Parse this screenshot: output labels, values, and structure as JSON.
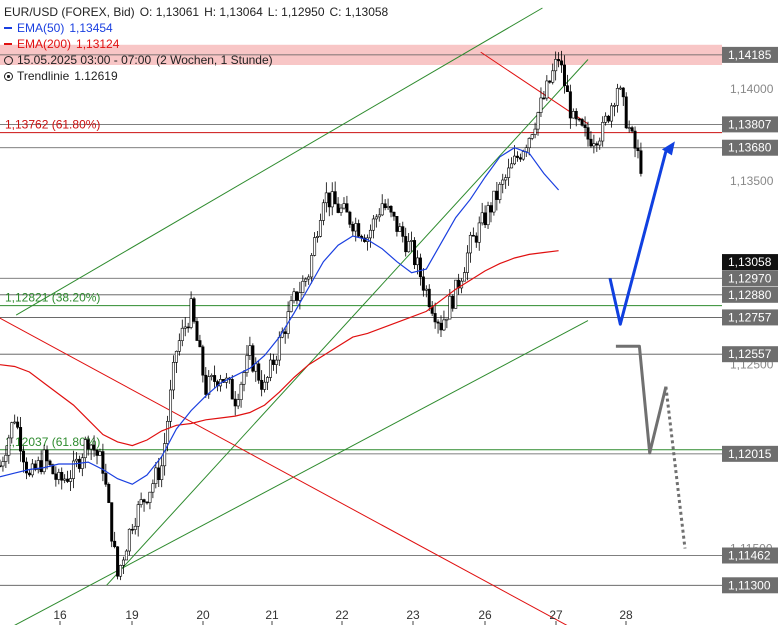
{
  "legend": {
    "symbol": "EUR/USD (FOREX, Bid)",
    "open": "O: 1,13061",
    "high": "H: 1,13064",
    "low": "L: 1,12950",
    "close": "C: 1,13058",
    "ema50_label": "EMA(50)",
    "ema50_value": "1,13454",
    "ema200_label": "EMA(200)",
    "ema200_value": "1,13124",
    "period": "15.05.2025 03:00 - 07:00",
    "interval": "(2 Wochen, 1 Stunde)",
    "trendline_label": "Trendlinie",
    "trendline_value": "1.12619"
  },
  "colors": {
    "candle": "#000000",
    "ema50": "#1a3fe0",
    "ema200": "#e01010",
    "channel": "#2e8b2e",
    "resistance_line": "#e01010",
    "level_line": "#555555",
    "forecast_up": "#1040e0",
    "forecast_down": "#707070",
    "price_badge": "#111111",
    "resistance_zone": "#f4a0a0"
  },
  "chart_data": {
    "type": "candlestick",
    "instrument": "EUR/USD",
    "x_ticks": [
      "16",
      "19",
      "20",
      "21",
      "22",
      "23",
      "26",
      "27",
      "28"
    ],
    "y_ticks": [
      "1,14000",
      "1,13500",
      "1,12500",
      "1,11500"
    ],
    "ylim": [
      1.1122,
      1.1444
    ],
    "current_price": "1,13058",
    "resistance_zone": [
      1.1413,
      1.1424
    ],
    "horizontal_levels": [
      {
        "value": 1.14185,
        "label": "1,14185"
      },
      {
        "value": 1.13807,
        "label": "1,13807"
      },
      {
        "value": 1.1368,
        "label": "1,13680"
      },
      {
        "value": 1.1297,
        "label": "1,12970"
      },
      {
        "value": 1.1288,
        "label": "1,12880"
      },
      {
        "value": 1.12757,
        "label": "1,12757"
      },
      {
        "value": 1.12557,
        "label": "1,12557"
      },
      {
        "value": 1.12015,
        "label": "1,12015"
      },
      {
        "value": 1.11462,
        "label": "1,11462"
      },
      {
        "value": 1.113,
        "label": "1,11300"
      }
    ],
    "fib_levels": [
      {
        "value": 1.13762,
        "label": "1,13762 (61.80%)",
        "color": "#cc1010"
      },
      {
        "value": 1.12821,
        "label": "1,12821 (38.20%)",
        "color": "#2e8b2e"
      },
      {
        "value": 1.12037,
        "label": "1,12037 (61.80%)",
        "color": "#2e8b2e"
      }
    ],
    "ema50": [
      [
        0,
        1.1189
      ],
      [
        1,
        1.1191
      ],
      [
        2,
        1.1193
      ],
      [
        3,
        1.1194
      ],
      [
        4,
        1.1196
      ],
      [
        5,
        1.1196
      ],
      [
        6,
        1.1197
      ],
      [
        7,
        1.1193
      ],
      [
        8,
        1.1188
      ],
      [
        9,
        1.1185
      ],
      [
        10,
        1.119
      ],
      [
        11,
        1.12
      ],
      [
        12,
        1.1215
      ],
      [
        13,
        1.1225
      ],
      [
        14,
        1.1233
      ],
      [
        15,
        1.124
      ],
      [
        16,
        1.1244
      ],
      [
        17,
        1.1248
      ],
      [
        18,
        1.1255
      ],
      [
        19,
        1.1265
      ],
      [
        20,
        1.1278
      ],
      [
        21,
        1.1292
      ],
      [
        22,
        1.1306
      ],
      [
        23,
        1.1315
      ],
      [
        24,
        1.132
      ],
      [
        25,
        1.1318
      ],
      [
        26,
        1.1313
      ],
      [
        27,
        1.1306
      ],
      [
        28,
        1.13
      ],
      [
        29,
        1.1302
      ],
      [
        30,
        1.1316
      ],
      [
        31,
        1.133
      ],
      [
        32,
        1.134
      ],
      [
        33,
        1.1352
      ],
      [
        34,
        1.1363
      ],
      [
        35,
        1.1368
      ],
      [
        36,
        1.1365
      ],
      [
        37,
        1.1354
      ],
      [
        38,
        1.1345
      ]
    ],
    "ema200": [
      [
        0,
        1.125
      ],
      [
        1,
        1.1249
      ],
      [
        2,
        1.1246
      ],
      [
        3,
        1.124
      ],
      [
        4,
        1.1234
      ],
      [
        5,
        1.1228
      ],
      [
        6,
        1.122
      ],
      [
        7,
        1.1212
      ],
      [
        8,
        1.1208
      ],
      [
        9,
        1.1206
      ],
      [
        10,
        1.1209
      ],
      [
        11,
        1.1214
      ],
      [
        12,
        1.1217
      ],
      [
        13,
        1.1218
      ],
      [
        14,
        1.122
      ],
      [
        15,
        1.1221
      ],
      [
        16,
        1.1222
      ],
      [
        17,
        1.1224
      ],
      [
        18,
        1.1228
      ],
      [
        19,
        1.1235
      ],
      [
        20,
        1.1243
      ],
      [
        21,
        1.125
      ],
      [
        22,
        1.1255
      ],
      [
        23,
        1.126
      ],
      [
        24,
        1.1265
      ],
      [
        25,
        1.1267
      ],
      [
        26,
        1.127
      ],
      [
        27,
        1.1273
      ],
      [
        28,
        1.1276
      ],
      [
        29,
        1.1279
      ],
      [
        30,
        1.1285
      ],
      [
        31,
        1.1291
      ],
      [
        32,
        1.1296
      ],
      [
        33,
        1.1301
      ],
      [
        34,
        1.1305
      ],
      [
        35,
        1.1308
      ],
      [
        36,
        1.131
      ],
      [
        37,
        1.1311
      ],
      [
        38,
        1.1312
      ]
    ],
    "price_path": [
      [
        0,
        1.1195
      ],
      [
        1,
        1.1222
      ],
      [
        2,
        1.1188
      ],
      [
        3,
        1.1199
      ],
      [
        4,
        1.1186
      ],
      [
        5,
        1.1192
      ],
      [
        6,
        1.121
      ],
      [
        7,
        1.1195
      ],
      [
        8,
        1.1135
      ],
      [
        9,
        1.1165
      ],
      [
        10,
        1.118
      ],
      [
        11,
        1.1195
      ],
      [
        12,
        1.1258
      ],
      [
        13,
        1.128
      ],
      [
        14,
        1.1237
      ],
      [
        15,
        1.1245
      ],
      [
        16,
        1.1232
      ],
      [
        17,
        1.1255
      ],
      [
        18,
        1.1237
      ],
      [
        19,
        1.1262
      ],
      [
        20,
        1.1285
      ],
      [
        21,
        1.13
      ],
      [
        22,
        1.1343
      ],
      [
        23,
        1.1335
      ],
      [
        24,
        1.1328
      ],
      [
        25,
        1.132
      ],
      [
        26,
        1.1338
      ],
      [
        27,
        1.1325
      ],
      [
        28,
        1.1312
      ],
      [
        29,
        1.129
      ],
      [
        30,
        1.1272
      ],
      [
        31,
        1.129
      ],
      [
        32,
        1.1315
      ],
      [
        33,
        1.133
      ],
      [
        34,
        1.1345
      ],
      [
        35,
        1.136
      ],
      [
        36,
        1.1375
      ],
      [
        37,
        1.1395
      ],
      [
        38,
        1.1417
      ],
      [
        39,
        1.1382
      ],
      [
        40,
        1.1373
      ],
      [
        41,
        1.1377
      ],
      [
        42,
        1.1402
      ],
      [
        43,
        1.1372
      ],
      [
        44,
        1.135
      ],
      [
        45,
        1.1367
      ],
      [
        46,
        1.1342
      ],
      [
        47,
        1.1335
      ],
      [
        48,
        1.134
      ],
      [
        49,
        1.1315
      ],
      [
        50,
        1.1306
      ]
    ],
    "green_channel": [
      {
        "from": [
          1.1,
          1.1277
        ],
        "to": [
          36.9,
          1.1444
        ]
      },
      {
        "from": [
          7.25,
          1.113
        ],
        "to": [
          40.0,
          1.1416
        ]
      },
      {
        "from": [
          0.0,
          1.1104
        ],
        "to": [
          40.0,
          1.1274
        ]
      }
    ],
    "red_trendlines": [
      {
        "from": [
          -0.4,
          1.1277
        ],
        "to": [
          40.0,
          1.1102
        ]
      },
      {
        "from": [
          32.7,
          1.142
        ],
        "to": [
          40.0,
          1.1381
        ]
      }
    ],
    "forecast_blue": [
      [
        41.5,
        1.1297
      ],
      [
        42.2,
        1.1272
      ],
      [
        45.3,
        1.1366
      ]
    ],
    "forecast_gray": [
      [
        41.9,
        1.126
      ],
      [
        43.5,
        1.126
      ],
      [
        44.2,
        1.1202
      ],
      [
        45.3,
        1.1238
      ],
      [
        46.6,
        1.115
      ]
    ]
  }
}
